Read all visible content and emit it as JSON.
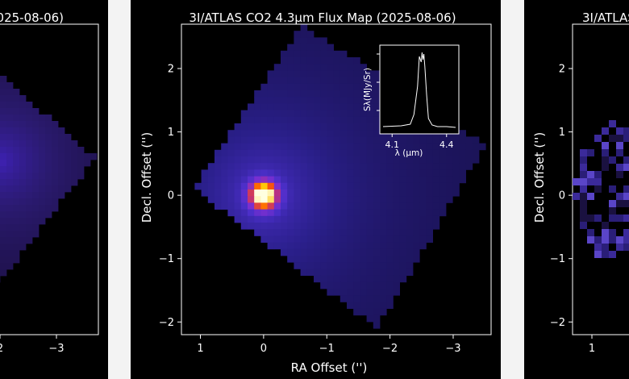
{
  "panels": {
    "left": {
      "title_fragment": "2025-08-06)",
      "x_tick_labels": [
        "2",
        "−3"
      ],
      "cmap": [
        "#000000",
        "#1a0e3e",
        "#2a1a6e",
        "#3a20a8",
        "#5a2ee0"
      ]
    },
    "center": {
      "title": "3I/ATLAS CO2 4.3µm Flux Map (2025-08-06)",
      "ylabel": "Decl. Offset ('')",
      "xlabel": "RA Offset ('')",
      "x_tick_labels": [
        "1",
        "0",
        "−1",
        "−2",
        "−3"
      ],
      "y_tick_labels": [
        "2",
        "1",
        "0",
        "−1",
        "−2"
      ],
      "cmap": [
        "#000000",
        "#17104a",
        "#2a1f8a",
        "#4b2fc9",
        "#7b2fd0",
        "#c0307a",
        "#ff5a00",
        "#ffc400",
        "#ffffe0"
      ],
      "inset": {
        "ylabel": "Sλ(MJy/Sr)",
        "xlabel": "λ (µm)",
        "x_tick_labels": [
          "4.1",
          "4.4"
        ]
      }
    },
    "right": {
      "title_fragment": "3I/ATLAS",
      "ylabel": "Decl. Offset ('')",
      "y_tick_labels": [
        "2",
        "1",
        "0",
        "−1",
        "−2"
      ],
      "x_tick_labels": [
        "1"
      ],
      "colors": [
        "#1a1140",
        "#2a1e78",
        "#3b2a9a",
        "#5a45c8"
      ]
    }
  },
  "chart_data": [
    {
      "type": "heatmap",
      "title": "3I/ATLAS CO2 4.3µm Flux Map (2025-08-06)",
      "xlabel": "RA Offset ('')",
      "ylabel": "Decl. Offset ('')",
      "xlim": [
        1.3,
        -3.6
      ],
      "ylim": [
        -2.2,
        2.7
      ],
      "x_ticks": [
        1,
        0,
        -1,
        -2,
        -3
      ],
      "y_ticks": [
        2,
        1,
        0,
        -1,
        -2
      ],
      "peak": {
        "x": 0.0,
        "y": 0.0
      },
      "coverage_corners": [
        [
          -0.6,
          2.7
        ],
        [
          -3.5,
          0.8
        ],
        [
          -1.8,
          -2.1
        ],
        [
          1.1,
          0.1
        ]
      ],
      "colormap": "plasma-like, black → purple → orange → pale yellow"
    },
    {
      "type": "line",
      "inset": true,
      "xlabel": "λ (µm)",
      "ylabel": "Sλ(MJy/Sr)",
      "x_ticks": [
        4.1,
        4.4
      ],
      "x": [
        4.05,
        4.15,
        4.2,
        4.22,
        4.24,
        4.25,
        4.26,
        4.265,
        4.27,
        4.275,
        4.28,
        4.29,
        4.3,
        4.32,
        4.35,
        4.4,
        4.45
      ],
      "y": [
        0.05,
        0.06,
        0.08,
        0.2,
        0.55,
        0.92,
        0.85,
        0.97,
        0.88,
        0.95,
        0.8,
        0.45,
        0.15,
        0.07,
        0.05,
        0.05,
        0.04
      ]
    }
  ]
}
